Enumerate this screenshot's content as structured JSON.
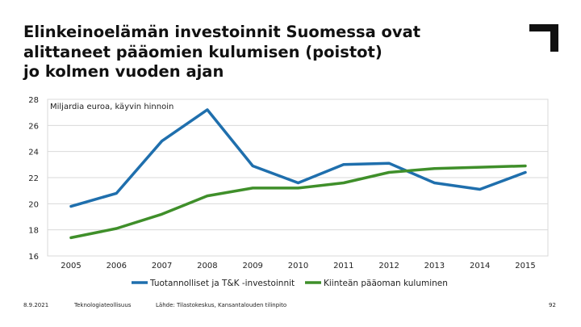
{
  "title_lines": [
    "Elinkeinoelämän investoinnit Suomessa ovat",
    "alittaneet pääomien kulumisen (poistot)",
    "jo kolmen vuoden ajan"
  ],
  "footer": {
    "date": "8.9.2021",
    "organization": "Teknologiateollisuus",
    "source": "Lähde: Tilastokeskus, Kansantalouden tilinpito",
    "page_number": "92"
  },
  "colors": {
    "series_investments": "#1f6fad",
    "series_depreciation": "#3f8f2a",
    "grid": "#d9d9d9",
    "text": "#111111"
  },
  "chart_data": {
    "type": "line",
    "title": "",
    "unit_label": "Miljardia euroa, käyvin hinnoin",
    "xlabel": "",
    "ylabel": "",
    "x": [
      2005,
      2006,
      2007,
      2008,
      2009,
      2010,
      2011,
      2012,
      2013,
      2014,
      2015
    ],
    "x_tick_labels": [
      "2005",
      "2006",
      "2007",
      "2008",
      "2009",
      "2010",
      "2011",
      "2012",
      "2013",
      "2014",
      "2015"
    ],
    "ylim": [
      16,
      28
    ],
    "y_ticks": [
      16,
      18,
      20,
      22,
      24,
      26,
      28
    ],
    "y_tick_labels": [
      "16",
      "18",
      "20",
      "22",
      "24",
      "26",
      "28"
    ],
    "grid": true,
    "legend_position": "bottom",
    "series": [
      {
        "name": "Tuotannolliset ja T&K -investoinnit",
        "color": "#1f6fad",
        "values": [
          19.8,
          20.8,
          24.8,
          27.2,
          22.9,
          21.6,
          23.0,
          23.1,
          21.6,
          21.1,
          22.4
        ]
      },
      {
        "name": "Kiinteän pääoman kuluminen",
        "color": "#3f8f2a",
        "values": [
          17.4,
          18.1,
          19.2,
          20.6,
          21.2,
          21.2,
          21.6,
          22.4,
          22.7,
          22.8,
          22.9
        ]
      }
    ]
  }
}
